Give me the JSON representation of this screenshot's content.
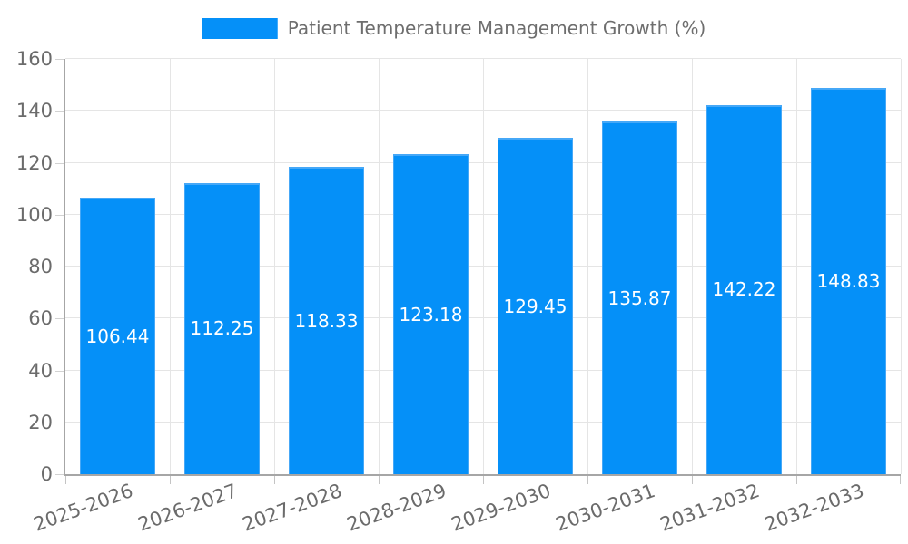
{
  "chart_data": {
    "type": "bar",
    "title": "Patient Temperature Management Growth (%)",
    "legend": [
      "Patient Temperature Management Growth (%)"
    ],
    "legend_position": "top",
    "categories": [
      "2025-2026",
      "2026-2027",
      "2027-2028",
      "2028-2029",
      "2029-2030",
      "2030-2031",
      "2031-2032",
      "2032-2033"
    ],
    "values": [
      106.44,
      112.25,
      118.33,
      123.18,
      129.45,
      135.87,
      142.22,
      148.83
    ],
    "value_labels": [
      "106.44",
      "112.25",
      "118.33",
      "123.18",
      "129.45",
      "135.87",
      "142.22",
      "148.83"
    ],
    "xlabel": "",
    "ylabel": "",
    "ylim": [
      0,
      160
    ],
    "yticks": [
      0,
      20,
      40,
      60,
      80,
      100,
      120,
      140,
      160
    ],
    "grid": true,
    "x_label_rotation_deg": -20,
    "colors": {
      "bar": "#0590f8",
      "bar_border": "#46a8f7",
      "value_label": "#ffffff",
      "grid": "#e5e5e5",
      "axis_line": "#a6a6a6",
      "tick_text": "#6b6b6b",
      "legend_text": "#6e6e6e"
    }
  }
}
